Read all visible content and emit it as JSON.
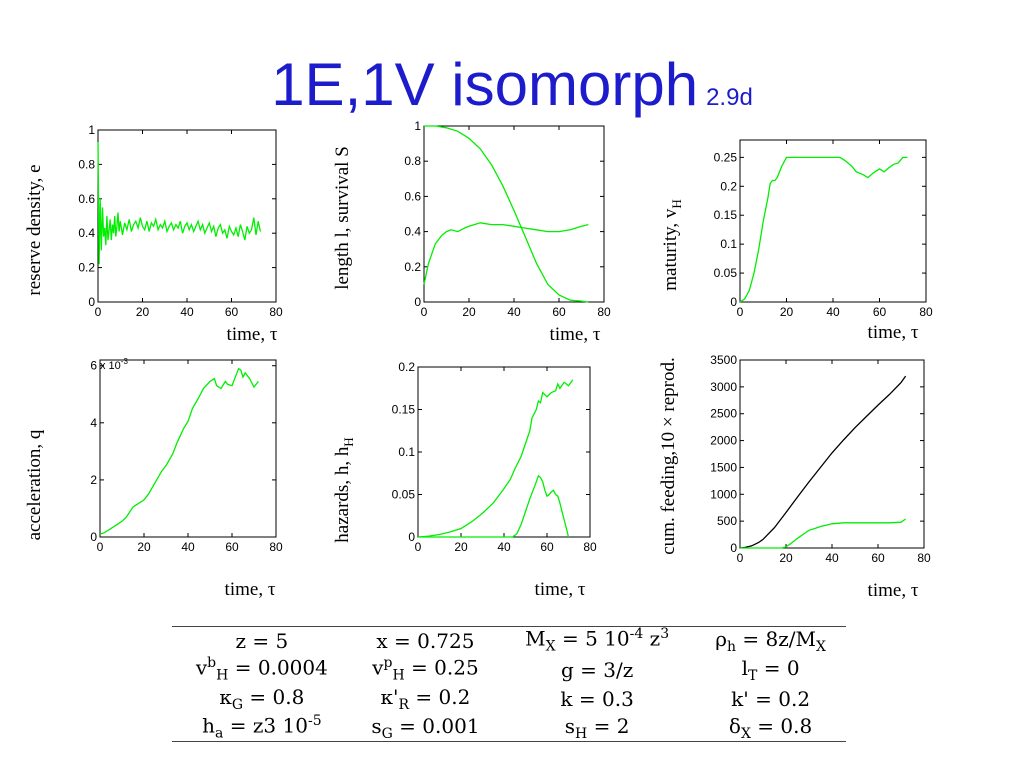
{
  "title": {
    "main": "1E,1V isomorph",
    "sub": "2.9d"
  },
  "colors": {
    "green": "#00ee00",
    "black": "#000000",
    "title": "#1c1ccc"
  },
  "chart_data": [
    {
      "id": "p1",
      "type": "line",
      "xlabel": "time, τ",
      "ylabel": "reserve density, e",
      "xlim": [
        0,
        80
      ],
      "ylim": [
        0,
        1
      ],
      "xticks": [
        0,
        20,
        40,
        60,
        80
      ],
      "yticks": [
        0,
        0.2,
        0.4,
        0.6,
        0.8,
        1
      ],
      "xticklabels": [
        "0",
        "20",
        "40",
        "60",
        "80"
      ],
      "yticklabels": [
        "0",
        "0.2",
        "0.4",
        "0.6",
        "0.8",
        "1"
      ],
      "series": [
        {
          "color": "#00ee00",
          "x": [
            0,
            0.5,
            1,
            1.5,
            2,
            2.5,
            3,
            3.5,
            4,
            4.5,
            5,
            5.5,
            6,
            6.5,
            7,
            7.5,
            8,
            8.5,
            9,
            9.5,
            10,
            11,
            12,
            13,
            14,
            15,
            16,
            17,
            18,
            19,
            20,
            21,
            22,
            23,
            24,
            25,
            26,
            27,
            28,
            29,
            30,
            31,
            32,
            33,
            34,
            35,
            36,
            37,
            38,
            39,
            40,
            41,
            42,
            43,
            44,
            45,
            46,
            47,
            48,
            49,
            50,
            51,
            52,
            53,
            54,
            55,
            56,
            57,
            58,
            59,
            60,
            61,
            62,
            63,
            64,
            65,
            66,
            67,
            68,
            69,
            70,
            71,
            72,
            73
          ],
          "y": [
            0.93,
            0.22,
            0.6,
            0.3,
            0.55,
            0.38,
            0.43,
            0.33,
            0.5,
            0.36,
            0.42,
            0.48,
            0.36,
            0.45,
            0.4,
            0.5,
            0.38,
            0.44,
            0.52,
            0.41,
            0.47,
            0.39,
            0.46,
            0.42,
            0.48,
            0.41,
            0.45,
            0.47,
            0.43,
            0.49,
            0.44,
            0.42,
            0.47,
            0.41,
            0.46,
            0.44,
            0.48,
            0.42,
            0.45,
            0.43,
            0.47,
            0.41,
            0.44,
            0.46,
            0.42,
            0.45,
            0.43,
            0.47,
            0.4,
            0.44,
            0.46,
            0.42,
            0.45,
            0.41,
            0.44,
            0.47,
            0.42,
            0.45,
            0.4,
            0.43,
            0.46,
            0.41,
            0.44,
            0.38,
            0.43,
            0.45,
            0.4,
            0.42,
            0.37,
            0.44,
            0.41,
            0.39,
            0.43,
            0.38,
            0.45,
            0.41,
            0.36,
            0.44,
            0.4,
            0.42,
            0.49,
            0.39,
            0.47,
            0.41
          ]
        }
      ]
    },
    {
      "id": "p2",
      "type": "line",
      "xlabel": "time, τ",
      "ylabel": "length l, survival S",
      "xlim": [
        0,
        80
      ],
      "ylim": [
        0,
        1
      ],
      "xticks": [
        0,
        20,
        40,
        60,
        80
      ],
      "yticks": [
        0,
        0.2,
        0.4,
        0.6,
        0.8,
        1
      ],
      "xticklabels": [
        "0",
        "20",
        "40",
        "60",
        "80"
      ],
      "yticklabels": [
        "0",
        "0.2",
        "0.4",
        "0.6",
        "0.8",
        "1"
      ],
      "series": [
        {
          "color": "#00ee00",
          "x": [
            0,
            5,
            10,
            15,
            20,
            25,
            30,
            35,
            40,
            45,
            50,
            55,
            60,
            65,
            70,
            73
          ],
          "y": [
            1,
            1,
            0.99,
            0.97,
            0.93,
            0.87,
            0.78,
            0.66,
            0.52,
            0.37,
            0.22,
            0.1,
            0.04,
            0.01,
            0.005,
            0
          ]
        },
        {
          "color": "#00ee00",
          "x": [
            0,
            2,
            5,
            8,
            10,
            12,
            15,
            18,
            20,
            25,
            30,
            35,
            40,
            45,
            50,
            55,
            60,
            65,
            70,
            73
          ],
          "y": [
            0.1,
            0.22,
            0.33,
            0.38,
            0.4,
            0.41,
            0.4,
            0.42,
            0.43,
            0.45,
            0.44,
            0.44,
            0.43,
            0.42,
            0.41,
            0.4,
            0.4,
            0.41,
            0.43,
            0.44
          ]
        }
      ]
    },
    {
      "id": "p3",
      "type": "line",
      "xlabel": "time, τ",
      "ylabel": "maturity, v",
      "ylabel_sub": "H",
      "xlim": [
        0,
        80
      ],
      "ylim": [
        0,
        0.28
      ],
      "xticks": [
        0,
        20,
        40,
        60,
        80
      ],
      "yticks": [
        0,
        0.05,
        0.1,
        0.15,
        0.2,
        0.25
      ],
      "xticklabels": [
        "0",
        "20",
        "40",
        "60",
        "80"
      ],
      "yticklabels": [
        "0",
        "0.05",
        "0.1",
        "0.15",
        "0.2",
        "0.25"
      ],
      "series": [
        {
          "color": "#00ee00",
          "x": [
            0,
            2,
            4,
            6,
            8,
            10,
            12,
            13,
            14,
            15,
            16,
            17,
            18,
            20,
            22,
            25,
            30,
            35,
            40,
            43,
            45,
            48,
            50,
            53,
            55,
            57,
            58,
            60,
            62,
            64,
            66,
            68,
            70,
            72
          ],
          "y": [
            0,
            0.005,
            0.02,
            0.05,
            0.09,
            0.14,
            0.18,
            0.205,
            0.21,
            0.21,
            0.215,
            0.225,
            0.235,
            0.25,
            0.25,
            0.25,
            0.25,
            0.25,
            0.25,
            0.25,
            0.245,
            0.235,
            0.225,
            0.22,
            0.215,
            0.222,
            0.225,
            0.23,
            0.225,
            0.232,
            0.238,
            0.24,
            0.25,
            0.25
          ]
        }
      ]
    },
    {
      "id": "p4",
      "type": "line",
      "xlabel": "time, τ",
      "ylabel": "acceleration, q",
      "exponent": "x 10",
      "exponent_power": "-3",
      "xlim": [
        0,
        80
      ],
      "ylim": [
        0,
        6.2
      ],
      "xticks": [
        0,
        20,
        40,
        60,
        80
      ],
      "yticks": [
        0,
        2,
        4,
        6
      ],
      "xticklabels": [
        "0",
        "20",
        "40",
        "60",
        "80"
      ],
      "yticklabels": [
        "0",
        "2",
        "4",
        "6"
      ],
      "series": [
        {
          "color": "#00ee00",
          "x": [
            0,
            2,
            5,
            8,
            10,
            12,
            15,
            17,
            20,
            22,
            25,
            28,
            30,
            33,
            35,
            38,
            40,
            42,
            45,
            47,
            50,
            52,
            53,
            55,
            57,
            58,
            60,
            62,
            63,
            64,
            65,
            66,
            68,
            70,
            72
          ],
          "y": [
            0.1,
            0.15,
            0.3,
            0.45,
            0.55,
            0.7,
            1.05,
            1.15,
            1.3,
            1.5,
            1.9,
            2.3,
            2.5,
            2.9,
            3.3,
            3.8,
            4.05,
            4.5,
            4.9,
            5.2,
            5.45,
            5.55,
            5.3,
            5.2,
            5.45,
            5.35,
            5.3,
            5.7,
            5.9,
            5.85,
            5.6,
            5.75,
            5.55,
            5.25,
            5.45
          ]
        }
      ]
    },
    {
      "id": "p5",
      "type": "line",
      "xlabel": "time, τ",
      "ylabel": "hazards, h, h",
      "ylabel_sub": "H",
      "xlim": [
        0,
        80
      ],
      "ylim": [
        0,
        0.2
      ],
      "xticks": [
        0,
        20,
        40,
        60,
        80
      ],
      "yticks": [
        0,
        0.05,
        0.1,
        0.15,
        0.2
      ],
      "xticklabels": [
        "0",
        "20",
        "40",
        "60",
        "80"
      ],
      "yticklabels": [
        "0",
        "0.05",
        "0.1",
        "0.15",
        "0.2"
      ],
      "series": [
        {
          "color": "#00ee00",
          "x": [
            0,
            5,
            10,
            15,
            20,
            25,
            30,
            35,
            40,
            43,
            45,
            48,
            50,
            52,
            53,
            55,
            56,
            57,
            58,
            60,
            62,
            64,
            65,
            66,
            68,
            70,
            72
          ],
          "y": [
            0,
            0.001,
            0.003,
            0.006,
            0.01,
            0.018,
            0.028,
            0.04,
            0.057,
            0.068,
            0.08,
            0.095,
            0.11,
            0.125,
            0.14,
            0.15,
            0.16,
            0.158,
            0.17,
            0.165,
            0.17,
            0.172,
            0.18,
            0.175,
            0.182,
            0.178,
            0.185
          ]
        },
        {
          "color": "#00ee00",
          "x": [
            0,
            20,
            40,
            44,
            46,
            48,
            50,
            52,
            54,
            55,
            56,
            57,
            58,
            59,
            60,
            61,
            62,
            63,
            64,
            65,
            66,
            67,
            68,
            69,
            70
          ],
          "y": [
            0,
            0,
            0,
            0,
            0.004,
            0.015,
            0.03,
            0.045,
            0.058,
            0.065,
            0.072,
            0.07,
            0.065,
            0.055,
            0.048,
            0.05,
            0.053,
            0.055,
            0.05,
            0.048,
            0.04,
            0.03,
            0.02,
            0.01,
            0
          ]
        }
      ]
    },
    {
      "id": "p6",
      "type": "line",
      "xlabel": "time, τ",
      "ylabel": "cum. feeding,10 × reprod.",
      "xlim": [
        0,
        80
      ],
      "ylim": [
        0,
        3500
      ],
      "xticks": [
        0,
        20,
        40,
        60,
        80
      ],
      "yticks": [
        0,
        500,
        1000,
        1500,
        2000,
        2500,
        3000,
        3500
      ],
      "xticklabels": [
        "0",
        "20",
        "40",
        "60",
        "80"
      ],
      "yticklabels": [
        "0",
        "500",
        "1000",
        "1500",
        "2000",
        "2500",
        "3000",
        "3500"
      ],
      "series": [
        {
          "color": "#000000",
          "x": [
            0,
            2,
            5,
            8,
            10,
            15,
            20,
            25,
            30,
            35,
            40,
            45,
            50,
            55,
            60,
            65,
            70,
            72
          ],
          "y": [
            0,
            10,
            40,
            100,
            160,
            380,
            660,
            950,
            1230,
            1500,
            1770,
            2010,
            2240,
            2450,
            2660,
            2860,
            3080,
            3200
          ]
        },
        {
          "color": "#00ee00",
          "x": [
            0,
            18,
            20,
            22,
            25,
            28,
            30,
            33,
            35,
            38,
            40,
            45,
            50,
            55,
            60,
            65,
            70,
            72
          ],
          "y": [
            0,
            0,
            20,
            80,
            180,
            270,
            330,
            370,
            400,
            430,
            450,
            470,
            470,
            470,
            470,
            470,
            480,
            540
          ]
        }
      ]
    }
  ],
  "params": [
    [
      "z = 5",
      "x = 0.725",
      "M_X = 5 10^{-4} z^3",
      "ρ_h = 8z/M_X"
    ],
    [
      "v^b_H = 0.0004",
      "v^p_H = 0.25",
      "g = 3/z",
      "l_T = 0"
    ],
    [
      "κ_G = 0.8",
      "κ'_R = 0.2",
      "k = 0.3",
      "k' = 0.2"
    ],
    [
      "h_a = z3 10^{-5}",
      "s_G = 0.001",
      "s_H = 2",
      "δ_X = 0.8"
    ]
  ]
}
